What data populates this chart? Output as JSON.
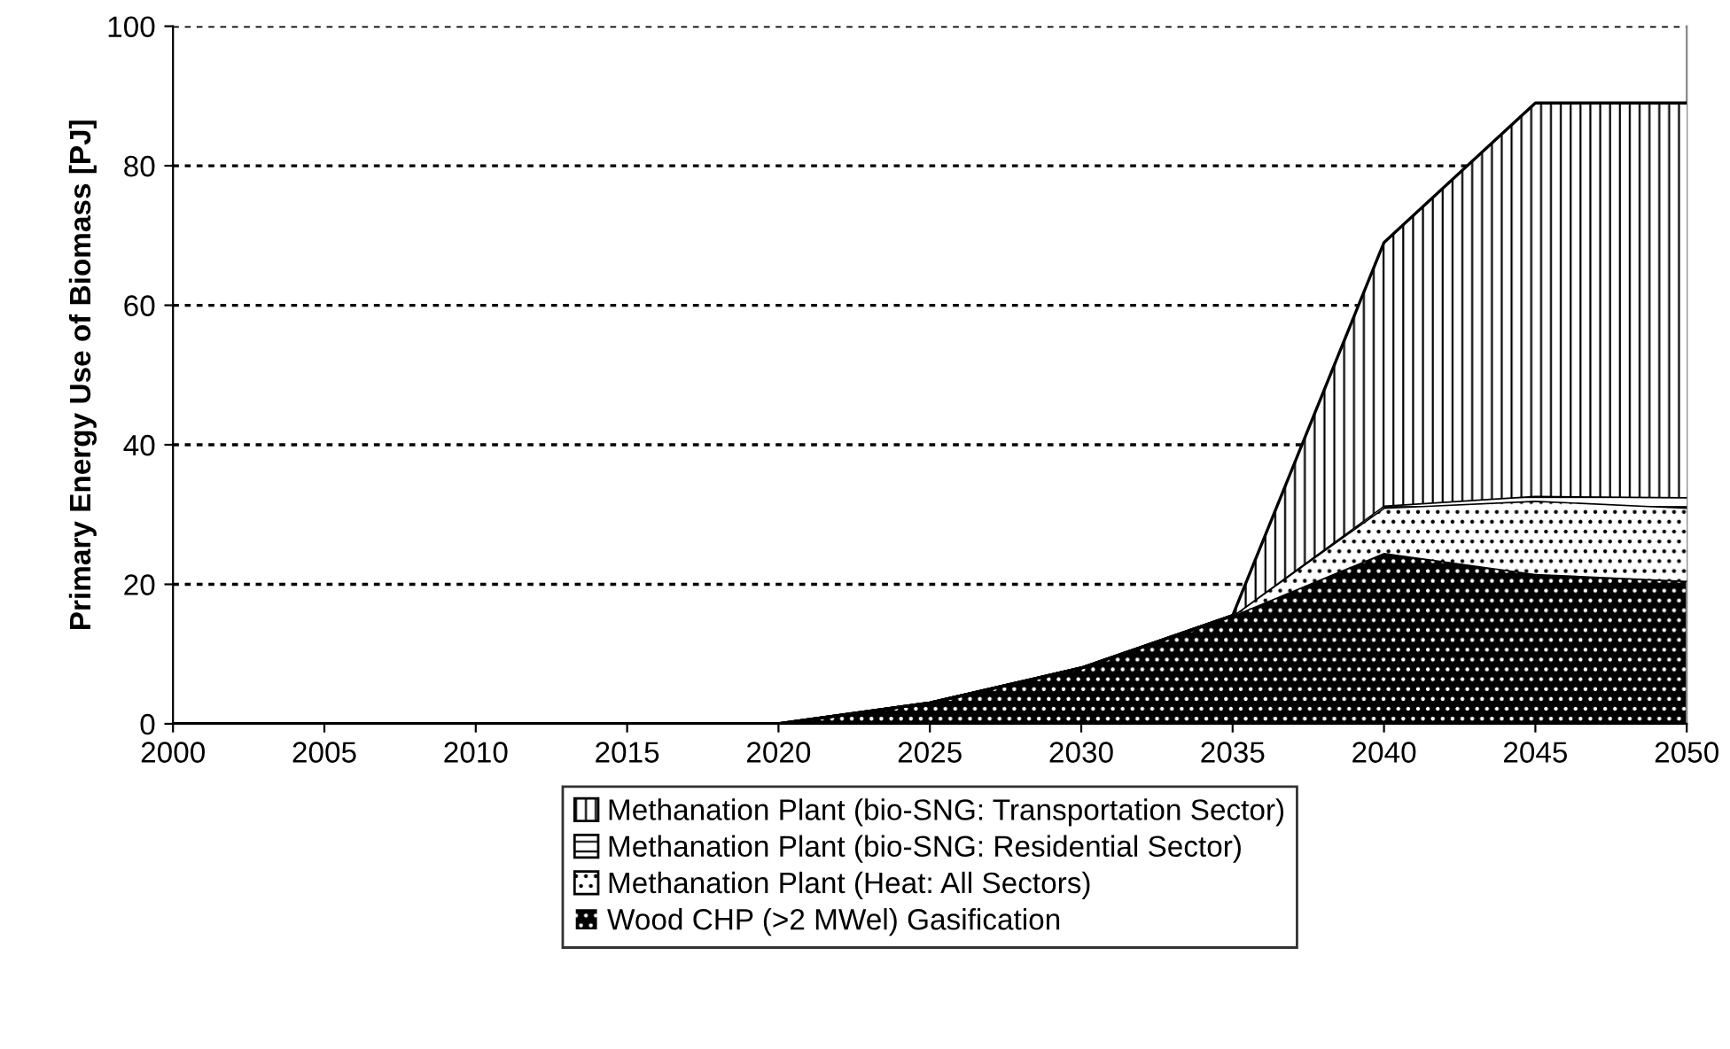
{
  "chart_data": {
    "type": "area",
    "stacked": true,
    "ylabel": "Primary Energy Use of Biomass [PJ]",
    "x": [
      2000,
      2005,
      2010,
      2015,
      2020,
      2025,
      2030,
      2035,
      2040,
      2045,
      2050
    ],
    "series": [
      {
        "name": "Wood CHP (>2 MWel) Gasification",
        "color": "#000000",
        "values": [
          0,
          0,
          0,
          0,
          0,
          3,
          8,
          15.5,
          24.5,
          21.5,
          20.5
        ]
      },
      {
        "name": "Methanation Plant (Heat: All Sectors)",
        "color": "#ffffff",
        "values": [
          0,
          0,
          0,
          0,
          0,
          0,
          0,
          0,
          6.5,
          10.5,
          10.5
        ]
      },
      {
        "name": "Methanation Plant (bio-SNG: Residential Sector)",
        "color": "#ffffff",
        "values": [
          0,
          0,
          0,
          0,
          0,
          0,
          0,
          0,
          0.3,
          0.7,
          1.5
        ]
      },
      {
        "name": "Methanation Plant (bio-SNG: Transportation Sector)",
        "color": "#ffffff",
        "values": [
          0,
          0,
          0,
          0,
          0,
          0,
          0,
          0,
          37.7,
          56.3,
          56.5
        ]
      }
    ],
    "xlim": [
      2000,
      2050
    ],
    "xticks": [
      2000,
      2005,
      2010,
      2015,
      2020,
      2025,
      2030,
      2035,
      2040,
      2045,
      2050
    ],
    "ylim": [
      0,
      100
    ],
    "yticks": [
      0,
      20,
      40,
      60,
      80,
      100
    ],
    "grid": "y",
    "legend": "bottom"
  }
}
